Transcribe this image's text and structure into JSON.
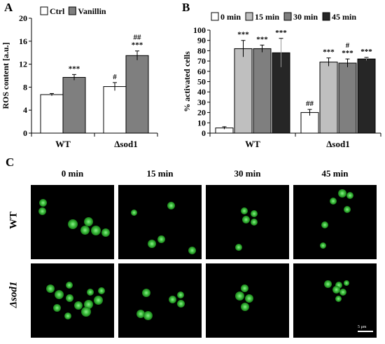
{
  "panels": {
    "a": "A",
    "b": "B",
    "c": "C"
  },
  "chart_data": [
    {
      "type": "bar",
      "ylabel": "ROS content [a.u.]",
      "ylim": [
        0,
        20
      ],
      "yticks": [
        "0",
        "4",
        "8",
        "12",
        "16",
        "20"
      ],
      "categories": [
        "WT",
        "Δsod1"
      ],
      "series": [
        {
          "name": "Ctrl",
          "values": [
            6.7,
            8.1
          ],
          "errors": [
            0.2,
            0.7
          ],
          "color": "#ffffff"
        },
        {
          "name": "Vanillin",
          "values": [
            9.7,
            13.5
          ],
          "errors": [
            0.5,
            0.8
          ],
          "color": "#7f7f7f"
        }
      ],
      "annotations": [
        {
          "category": 0,
          "series": 1,
          "lines": [
            "***"
          ]
        },
        {
          "category": 1,
          "series": 0,
          "lines": [
            "#"
          ]
        },
        {
          "category": 1,
          "series": 1,
          "lines": [
            "##",
            "***"
          ]
        }
      ],
      "legend": "top"
    },
    {
      "type": "bar",
      "ylabel": "% activated cells",
      "ylim": [
        0,
        100
      ],
      "yticks": [
        "0",
        "10",
        "20",
        "30",
        "40",
        "50",
        "60",
        "70",
        "80",
        "90",
        "100"
      ],
      "categories": [
        "WT",
        "Δsod1"
      ],
      "series": [
        {
          "name": "0 min",
          "values": [
            5,
            20
          ],
          "errors": [
            1.2,
            3
          ],
          "color": "#ffffff"
        },
        {
          "name": "15 min",
          "values": [
            82,
            69
          ],
          "errors": [
            8,
            4
          ],
          "color": "#bfbfbf"
        },
        {
          "name": "30 min",
          "values": [
            82,
            68
          ],
          "errors": [
            3.5,
            4
          ],
          "color": "#7f7f7f"
        },
        {
          "name": "45 min",
          "values": [
            78,
            72
          ],
          "errors": [
            14,
            1.5
          ],
          "color": "#262626"
        }
      ],
      "annotations": [
        {
          "category": 0,
          "series": 1,
          "lines": [
            "***"
          ]
        },
        {
          "category": 0,
          "series": 2,
          "lines": [
            "***"
          ]
        },
        {
          "category": 0,
          "series": 3,
          "lines": [
            "***"
          ]
        },
        {
          "category": 1,
          "series": 0,
          "lines": [
            "##"
          ]
        },
        {
          "category": 1,
          "series": 1,
          "lines": [
            "***"
          ]
        },
        {
          "category": 1,
          "series": 2,
          "lines": [
            "#",
            "***"
          ]
        },
        {
          "category": 1,
          "series": 3,
          "lines": [
            "***"
          ]
        }
      ],
      "legend": "top"
    }
  ],
  "micrographs": {
    "columns": [
      "0 min",
      "15 min",
      "30 min",
      "45 min"
    ],
    "rows": [
      "WT",
      "Δsod1"
    ],
    "scale_bar": "5 μm"
  }
}
